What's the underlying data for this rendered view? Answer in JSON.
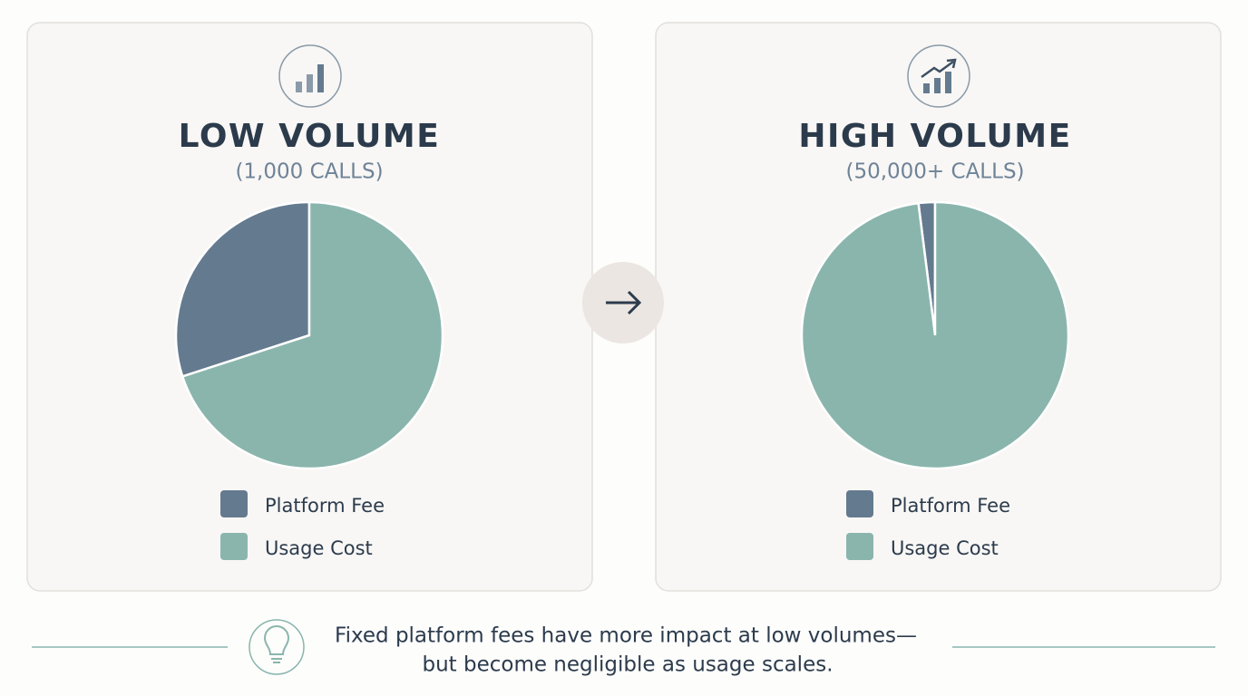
{
  "chart_data": [
    {
      "type": "pie",
      "title": "LOW VOLUME",
      "subtitle": "(1,000 CALLS)",
      "categories": [
        "Platform Fee",
        "Usage Cost"
      ],
      "values": [
        30,
        70
      ],
      "colors": [
        "#647a8f",
        "#8ab5ad"
      ],
      "legend": "bottom"
    },
    {
      "type": "pie",
      "title": "HIGH VOLUME",
      "subtitle": "(50,000+ CALLS)",
      "categories": [
        "Platform Fee",
        "Usage Cost"
      ],
      "values": [
        2,
        98
      ],
      "colors": [
        "#647a8f",
        "#8ab5ad"
      ],
      "legend": "bottom"
    }
  ],
  "footer": {
    "lines": [
      "Fixed platform fees have more impact at low volumes—",
      "but become negligible as usage scales."
    ]
  }
}
